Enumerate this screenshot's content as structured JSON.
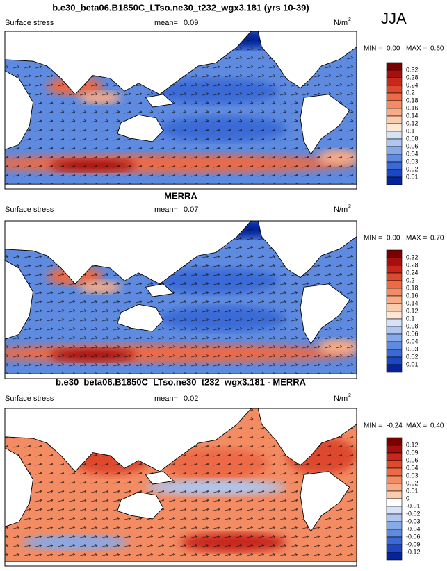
{
  "header": {
    "season": "JJA"
  },
  "panels": [
    {
      "title": "b.e30_beta06.B1850C_LTso.ne30_t232_wgx3.181 (yrs 10-39)",
      "left_label": "Surface stress",
      "mean_label": "mean=",
      "mean": "0.09",
      "units": "N/m",
      "units_sup": "2",
      "min_label": "MIN =",
      "min": "0.00",
      "max_label": "MAX =",
      "max": "0.60",
      "colorbar": {
        "labels": [
          "0.32",
          "0.28",
          "0.24",
          "0.2",
          "0.18",
          "0.16",
          "0.14",
          "0.12",
          "0.1",
          "0.08",
          "0.06",
          "0.04",
          "0.03",
          "0.02",
          "0.01"
        ],
        "colors": [
          "#7a0000",
          "#a50f0f",
          "#c8281c",
          "#de4a2e",
          "#ec6a46",
          "#f38b63",
          "#f8ab86",
          "#fbcbae",
          "#fde8d6",
          "#d6e3f7",
          "#aec6f0",
          "#86a9e8",
          "#5e8ae0",
          "#3a6ad6",
          "#1c47c4",
          "#06249a"
        ]
      },
      "style": "magnitude"
    },
    {
      "title": "MERRA",
      "left_label": "Surface stress",
      "mean_label": "mean=",
      "mean": "0.07",
      "units": "N/m",
      "units_sup": "2",
      "min_label": "MIN =",
      "min": "0.00",
      "max_label": "MAX =",
      "max": "0.70",
      "colorbar": {
        "labels": [
          "0.32",
          "0.28",
          "0.24",
          "0.2",
          "0.18",
          "0.16",
          "0.14",
          "0.12",
          "0.1",
          "0.08",
          "0.06",
          "0.04",
          "0.03",
          "0.02",
          "0.01"
        ],
        "colors": [
          "#7a0000",
          "#a50f0f",
          "#c8281c",
          "#de4a2e",
          "#ec6a46",
          "#f38b63",
          "#f8ab86",
          "#fbcbae",
          "#fde8d6",
          "#d6e3f7",
          "#aec6f0",
          "#86a9e8",
          "#5e8ae0",
          "#3a6ad6",
          "#1c47c4",
          "#06249a"
        ]
      },
      "style": "magnitude"
    },
    {
      "title": "b.e30_beta06.B1850C_LTso.ne30_t232_wgx3.181 - MERRA",
      "left_label": "Surface stress",
      "mean_label": "mean=",
      "mean": "0.02",
      "units": "N/m",
      "units_sup": "2",
      "min_label": "MIN =",
      "min": "-0.24",
      "max_label": "MAX =",
      "max": "0.40",
      "colorbar": {
        "labels": [
          "0.12",
          "0.09",
          "0.06",
          "0.04",
          "0.03",
          "0.02",
          "0.01",
          "0",
          "-0.01",
          "-0.02",
          "-0.03",
          "-0.04",
          "-0.06",
          "-0.09",
          "-0.12"
        ],
        "colors": [
          "#7a0000",
          "#a50f0f",
          "#c8281c",
          "#de4a2e",
          "#ec6a46",
          "#f38b63",
          "#f8ab86",
          "#fbcbae",
          "#ffffff",
          "#d6e3f7",
          "#aec6f0",
          "#86a9e8",
          "#5e8ae0",
          "#3a6ad6",
          "#1c47c4",
          "#06249a"
        ]
      },
      "style": "difference"
    }
  ]
}
